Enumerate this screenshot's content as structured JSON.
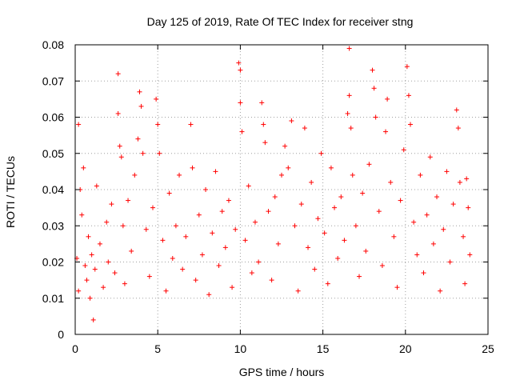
{
  "chart_data": {
    "type": "scatter",
    "title": "Day 125 of 2019, Rate Of TEC Index for receiver stng",
    "xlabel": "GPS time / hours",
    "ylabel": "ROTI / TECUs",
    "xlim": [
      0,
      25
    ],
    "ylim": [
      0,
      0.08
    ],
    "grid": true,
    "marker": "+",
    "marker_color": "#ff0000",
    "x_ticks": [
      0,
      5,
      10,
      15,
      20,
      25
    ],
    "x_tick_labels": [
      "0",
      "5",
      "10",
      "15",
      "20",
      "25"
    ],
    "y_ticks": [
      0,
      0.01,
      0.02,
      0.03,
      0.04,
      0.05,
      0.06,
      0.07,
      0.08
    ],
    "y_tick_labels": [
      "0",
      "0.01",
      "0.02",
      "0.03",
      "0.04",
      "0.05",
      "0.06",
      "0.07",
      "0.08"
    ],
    "series": [
      {
        "name": "ROTI",
        "note": "dense noisy scatter across 0-24 h; core band ~0.01-0.03 TECU/min; sampled representative points",
        "points": [
          [
            0.1,
            0.021
          ],
          [
            0.2,
            0.058
          ],
          [
            0.2,
            0.012
          ],
          [
            0.3,
            0.04
          ],
          [
            0.4,
            0.033
          ],
          [
            0.5,
            0.046
          ],
          [
            0.6,
            0.019
          ],
          [
            0.7,
            0.015
          ],
          [
            0.8,
            0.027
          ],
          [
            0.9,
            0.01
          ],
          [
            1.0,
            0.022
          ],
          [
            1.1,
            0.004
          ],
          [
            1.2,
            0.018
          ],
          [
            1.3,
            0.041
          ],
          [
            1.5,
            0.025
          ],
          [
            1.7,
            0.013
          ],
          [
            1.9,
            0.031
          ],
          [
            2.0,
            0.02
          ],
          [
            2.2,
            0.036
          ],
          [
            2.4,
            0.017
          ],
          [
            2.6,
            0.072
          ],
          [
            2.6,
            0.061
          ],
          [
            2.7,
            0.052
          ],
          [
            2.8,
            0.049
          ],
          [
            2.9,
            0.03
          ],
          [
            3.0,
            0.014
          ],
          [
            3.2,
            0.037
          ],
          [
            3.4,
            0.023
          ],
          [
            3.6,
            0.044
          ],
          [
            3.8,
            0.054
          ],
          [
            3.9,
            0.067
          ],
          [
            4.0,
            0.063
          ],
          [
            4.1,
            0.05
          ],
          [
            4.3,
            0.029
          ],
          [
            4.5,
            0.016
          ],
          [
            4.7,
            0.035
          ],
          [
            4.9,
            0.065
          ],
          [
            5.0,
            0.058
          ],
          [
            5.1,
            0.05
          ],
          [
            5.3,
            0.026
          ],
          [
            5.5,
            0.012
          ],
          [
            5.7,
            0.039
          ],
          [
            5.9,
            0.021
          ],
          [
            6.1,
            0.03
          ],
          [
            6.3,
            0.044
          ],
          [
            6.5,
            0.018
          ],
          [
            6.7,
            0.027
          ],
          [
            7.0,
            0.058
          ],
          [
            7.1,
            0.046
          ],
          [
            7.3,
            0.015
          ],
          [
            7.5,
            0.033
          ],
          [
            7.7,
            0.022
          ],
          [
            7.9,
            0.04
          ],
          [
            8.1,
            0.011
          ],
          [
            8.3,
            0.028
          ],
          [
            8.5,
            0.045
          ],
          [
            8.7,
            0.019
          ],
          [
            8.9,
            0.034
          ],
          [
            9.1,
            0.024
          ],
          [
            9.3,
            0.037
          ],
          [
            9.5,
            0.013
          ],
          [
            9.7,
            0.029
          ],
          [
            9.9,
            0.075
          ],
          [
            10.0,
            0.073
          ],
          [
            10.0,
            0.064
          ],
          [
            10.1,
            0.056
          ],
          [
            10.3,
            0.026
          ],
          [
            10.5,
            0.041
          ],
          [
            10.7,
            0.017
          ],
          [
            10.9,
            0.031
          ],
          [
            11.1,
            0.02
          ],
          [
            11.3,
            0.064
          ],
          [
            11.4,
            0.058
          ],
          [
            11.5,
            0.053
          ],
          [
            11.7,
            0.034
          ],
          [
            11.9,
            0.015
          ],
          [
            12.1,
            0.038
          ],
          [
            12.3,
            0.025
          ],
          [
            12.5,
            0.044
          ],
          [
            12.7,
            0.052
          ],
          [
            12.9,
            0.046
          ],
          [
            13.1,
            0.059
          ],
          [
            13.3,
            0.03
          ],
          [
            13.5,
            0.012
          ],
          [
            13.7,
            0.036
          ],
          [
            13.9,
            0.057
          ],
          [
            14.1,
            0.024
          ],
          [
            14.3,
            0.042
          ],
          [
            14.5,
            0.018
          ],
          [
            14.7,
            0.032
          ],
          [
            14.9,
            0.05
          ],
          [
            15.1,
            0.028
          ],
          [
            15.3,
            0.014
          ],
          [
            15.5,
            0.046
          ],
          [
            15.7,
            0.035
          ],
          [
            15.9,
            0.021
          ],
          [
            16.1,
            0.038
          ],
          [
            16.3,
            0.026
          ],
          [
            16.5,
            0.061
          ],
          [
            16.6,
            0.079
          ],
          [
            16.6,
            0.066
          ],
          [
            16.7,
            0.057
          ],
          [
            16.8,
            0.044
          ],
          [
            17.0,
            0.03
          ],
          [
            17.2,
            0.016
          ],
          [
            17.4,
            0.039
          ],
          [
            17.6,
            0.023
          ],
          [
            17.8,
            0.047
          ],
          [
            18.0,
            0.073
          ],
          [
            18.1,
            0.068
          ],
          [
            18.2,
            0.06
          ],
          [
            18.4,
            0.034
          ],
          [
            18.6,
            0.019
          ],
          [
            18.8,
            0.056
          ],
          [
            18.9,
            0.065
          ],
          [
            19.1,
            0.042
          ],
          [
            19.3,
            0.027
          ],
          [
            19.5,
            0.013
          ],
          [
            19.7,
            0.037
          ],
          [
            19.9,
            0.051
          ],
          [
            20.1,
            0.074
          ],
          [
            20.2,
            0.066
          ],
          [
            20.3,
            0.058
          ],
          [
            20.5,
            0.031
          ],
          [
            20.7,
            0.022
          ],
          [
            20.9,
            0.044
          ],
          [
            21.1,
            0.017
          ],
          [
            21.3,
            0.033
          ],
          [
            21.5,
            0.049
          ],
          [
            21.7,
            0.025
          ],
          [
            21.9,
            0.038
          ],
          [
            22.1,
            0.012
          ],
          [
            22.3,
            0.029
          ],
          [
            22.5,
            0.045
          ],
          [
            22.7,
            0.02
          ],
          [
            22.9,
            0.036
          ],
          [
            23.1,
            0.062
          ],
          [
            23.2,
            0.057
          ],
          [
            23.3,
            0.042
          ],
          [
            23.5,
            0.027
          ],
          [
            23.6,
            0.014
          ],
          [
            23.7,
            0.043
          ],
          [
            23.8,
            0.035
          ],
          [
            23.9,
            0.022
          ]
        ]
      }
    ]
  }
}
